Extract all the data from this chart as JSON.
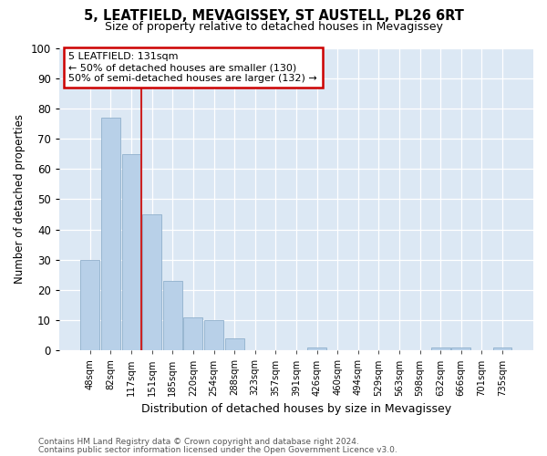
{
  "title1": "5, LEATFIELD, MEVAGISSEY, ST AUSTELL, PL26 6RT",
  "title2": "Size of property relative to detached houses in Mevagissey",
  "xlabel": "Distribution of detached houses by size in Mevagissey",
  "ylabel": "Number of detached properties",
  "categories": [
    "48sqm",
    "82sqm",
    "117sqm",
    "151sqm",
    "185sqm",
    "220sqm",
    "254sqm",
    "288sqm",
    "323sqm",
    "357sqm",
    "391sqm",
    "426sqm",
    "460sqm",
    "494sqm",
    "529sqm",
    "563sqm",
    "598sqm",
    "632sqm",
    "666sqm",
    "701sqm",
    "735sqm"
  ],
  "values": [
    30,
    77,
    65,
    45,
    23,
    11,
    10,
    4,
    0,
    0,
    0,
    1,
    0,
    0,
    0,
    0,
    0,
    1,
    1,
    0,
    1
  ],
  "bar_color": "#b8d0e8",
  "bar_edge_color": "#90b0cc",
  "annotation_text_line1": "5 LEATFIELD: 131sqm",
  "annotation_text_line2": "← 50% of detached houses are smaller (130)",
  "annotation_text_line3": "50% of semi-detached houses are larger (132) →",
  "annotation_box_color": "#ffffff",
  "annotation_box_edge": "#cc0000",
  "red_line_color": "#cc2222",
  "ylim": [
    0,
    100
  ],
  "yticks": [
    0,
    10,
    20,
    30,
    40,
    50,
    60,
    70,
    80,
    90,
    100
  ],
  "footer1": "Contains HM Land Registry data © Crown copyright and database right 2024.",
  "footer2": "Contains public sector information licensed under the Open Government Licence v3.0.",
  "bg_color": "#ffffff",
  "plot_bg_color": "#dce8f4"
}
